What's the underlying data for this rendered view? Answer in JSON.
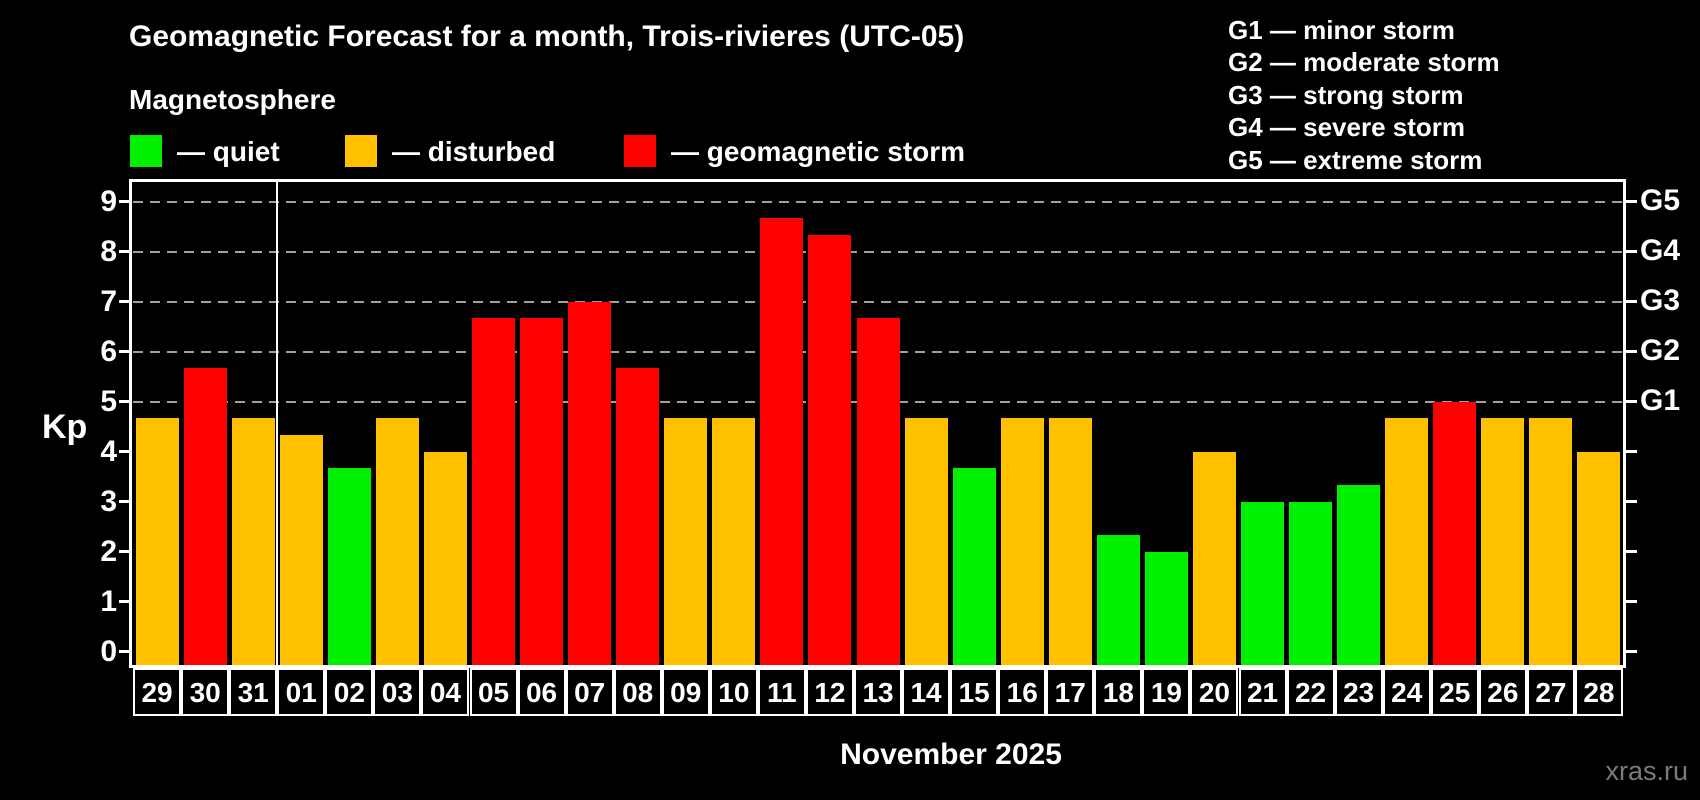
{
  "title": "Geomagnetic Forecast for a month, Trois-rivieres (UTC-05)",
  "subtitle": "Magnetosphere",
  "legend": {
    "items": [
      {
        "label": "— quiet",
        "status": "quiet"
      },
      {
        "label": "— disturbed",
        "status": "disturbed"
      },
      {
        "label": "— geomagnetic storm",
        "status": "storm"
      }
    ]
  },
  "g_legend": [
    "G1 — minor storm",
    "G2 — moderate storm",
    "G3 — strong storm",
    "G4 — severe storm",
    "G5 — extreme storm"
  ],
  "colors": {
    "quiet": "#00f000",
    "disturbed": "#ffc000",
    "storm": "#ff0000",
    "grid": "#a0a0a0",
    "axis": "#ffffff",
    "watermark": "#7a7a7a"
  },
  "watermark": "xras.ru",
  "chart_data": {
    "type": "bar",
    "title": "Geomagnetic Forecast for a month, Trois-rivieres (UTC-05)",
    "xlabel": "November 2025",
    "ylabel": "Kp",
    "ylim": [
      0,
      9.4
    ],
    "y_ticks": [
      0,
      1,
      2,
      3,
      4,
      5,
      6,
      7,
      8,
      9
    ],
    "grid_values": [
      5,
      6,
      7,
      8,
      9
    ],
    "grid_on": true,
    "legend_position": "top-left",
    "right_axis_labels": [
      {
        "label": "G1",
        "kp": 5
      },
      {
        "label": "G2",
        "kp": 6
      },
      {
        "label": "G3",
        "kp": 7
      },
      {
        "label": "G4",
        "kp": 8
      },
      {
        "label": "G5",
        "kp": 9
      }
    ],
    "month_separator_after_index": 3,
    "categories": [
      "29",
      "30",
      "31",
      "01",
      "02",
      "03",
      "04",
      "05",
      "06",
      "07",
      "08",
      "09",
      "10",
      "11",
      "12",
      "13",
      "14",
      "15",
      "16",
      "17",
      "18",
      "19",
      "20",
      "21",
      "22",
      "23",
      "24",
      "25",
      "26",
      "27",
      "28"
    ],
    "values": [
      4.67,
      5.67,
      4.67,
      4.33,
      3.67,
      4.67,
      4.0,
      6.67,
      6.67,
      7.0,
      5.67,
      4.67,
      4.67,
      8.67,
      8.33,
      6.67,
      4.67,
      3.67,
      4.67,
      4.67,
      2.33,
      2.0,
      4.0,
      3.0,
      3.0,
      3.33,
      4.67,
      5.0,
      4.67,
      4.67,
      4.0
    ],
    "statuses": [
      "disturbed",
      "storm",
      "disturbed",
      "disturbed",
      "quiet",
      "disturbed",
      "disturbed",
      "storm",
      "storm",
      "storm",
      "storm",
      "disturbed",
      "disturbed",
      "storm",
      "storm",
      "storm",
      "disturbed",
      "quiet",
      "disturbed",
      "disturbed",
      "quiet",
      "quiet",
      "disturbed",
      "quiet",
      "quiet",
      "quiet",
      "disturbed",
      "storm",
      "disturbed",
      "disturbed",
      "disturbed"
    ]
  }
}
